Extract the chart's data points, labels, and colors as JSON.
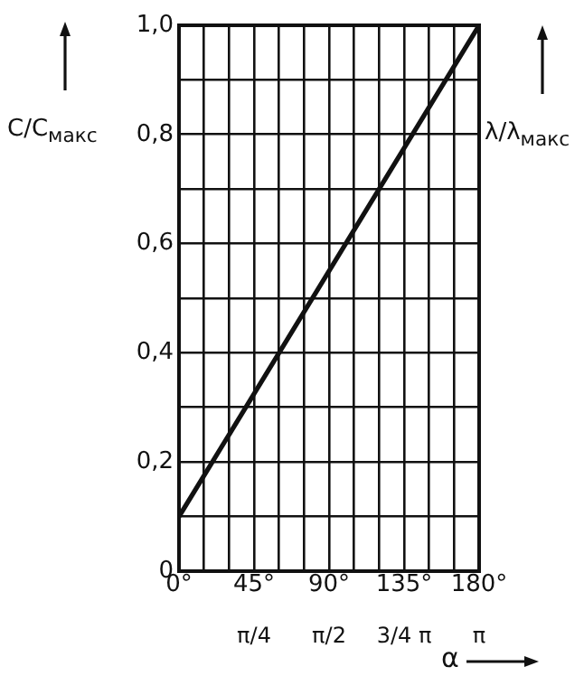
{
  "chart_data": {
    "type": "line",
    "xlabel": "α",
    "ylabel": "C/C$_{макс}$",
    "y2label": "λ/λ$_{макс}$",
    "x": [
      0,
      180
    ],
    "series": [
      {
        "color": "#111111",
        "values": [
          0.1,
          1.0
        ]
      }
    ],
    "xlim": [
      0,
      180
    ],
    "xticks": [
      {
        "value": 0,
        "label": "0°"
      },
      {
        "value": 15,
        "label": null
      },
      {
        "value": 30,
        "label": null
      },
      {
        "value": 45,
        "label": "45°"
      },
      {
        "value": 60,
        "label": null
      },
      {
        "value": 75,
        "label": null
      },
      {
        "value": 90,
        "label": "90°"
      },
      {
        "value": 105,
        "label": null
      },
      {
        "value": 120,
        "label": null
      },
      {
        "value": 135,
        "label": "135°"
      },
      {
        "value": 150,
        "label": null
      },
      {
        "value": 165,
        "label": null
      },
      {
        "value": 180,
        "label": "180°"
      }
    ],
    "x2lim": [
      0,
      3.1416
    ],
    "x2ticks": [
      {
        "value": 0.7854,
        "label": "π/4"
      },
      {
        "value": 1.5708,
        "label": "π/2"
      },
      {
        "value": 2.3562,
        "label": "3/4 π"
      },
      {
        "value": 3.1416,
        "label": "π"
      }
    ],
    "ylim": [
      0,
      1
    ],
    "yticks": [
      0,
      {
        "value": 0.1,
        "label": null
      },
      {
        "value": 0.2,
        "label": "0,2"
      },
      {
        "value": 0.3,
        "label": null
      },
      {
        "value": 0.4,
        "label": "0,4"
      },
      {
        "value": 0.5,
        "label": null
      },
      {
        "value": 0.6,
        "label": "0,6"
      },
      {
        "value": 0.7,
        "label": null
      },
      {
        "value": 0.8,
        "label": "0,8"
      },
      {
        "value": 0.9,
        "label": null
      },
      {
        "value": 1,
        "label": "1,0"
      }
    ],
    "grid": true,
    "legend": false,
    "marker": "none",
    "line_style": "solid"
  }
}
